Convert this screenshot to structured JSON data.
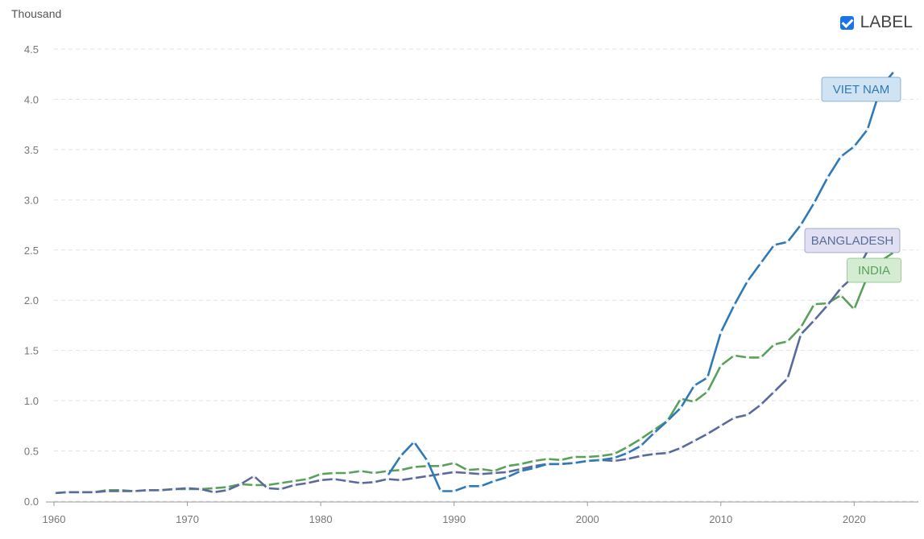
{
  "label_toggle": {
    "text": "LABEL",
    "checked": true
  },
  "chart_data": {
    "type": "line",
    "unit_label": "Thousand",
    "ylim": [
      0,
      4.5
    ],
    "y_ticks": [
      "0.0",
      "0.5",
      "1.0",
      "1.5",
      "2.0",
      "2.5",
      "3.0",
      "3.5",
      "4.0",
      "4.5"
    ],
    "x_ticks": [
      "1960",
      "1970",
      "1980",
      "1990",
      "2000",
      "2010",
      "2020"
    ],
    "xlim": [
      1960,
      2024
    ],
    "grid": true,
    "series": [
      {
        "name": "VIET NAM",
        "color": "#2f7ab6",
        "label_bg": "#cfe3f3",
        "points": [
          [
            1985,
            0.25
          ],
          [
            1986,
            0.45
          ],
          [
            1987,
            0.59
          ],
          [
            1988,
            0.4
          ],
          [
            1989,
            0.1
          ],
          [
            1990,
            0.1
          ],
          [
            1991,
            0.15
          ],
          [
            1992,
            0.15
          ],
          [
            1993,
            0.2
          ],
          [
            1994,
            0.24
          ],
          [
            1995,
            0.3
          ],
          [
            1996,
            0.33
          ],
          [
            1997,
            0.37
          ],
          [
            1998,
            0.37
          ],
          [
            1999,
            0.38
          ],
          [
            2000,
            0.4
          ],
          [
            2001,
            0.41
          ],
          [
            2002,
            0.43
          ],
          [
            2003,
            0.48
          ],
          [
            2004,
            0.55
          ],
          [
            2005,
            0.68
          ],
          [
            2006,
            0.8
          ],
          [
            2007,
            0.93
          ],
          [
            2008,
            1.15
          ],
          [
            2009,
            1.23
          ],
          [
            2010,
            1.68
          ],
          [
            2011,
            1.95
          ],
          [
            2012,
            2.19
          ],
          [
            2013,
            2.37
          ],
          [
            2014,
            2.55
          ],
          [
            2015,
            2.58
          ],
          [
            2016,
            2.75
          ],
          [
            2017,
            2.97
          ],
          [
            2018,
            3.22
          ],
          [
            2019,
            3.43
          ],
          [
            2020,
            3.53
          ],
          [
            2021,
            3.7
          ],
          [
            2022,
            4.12
          ],
          [
            2023,
            4.28
          ]
        ]
      },
      {
        "name": "BANGLADESH",
        "color": "#5a6a99",
        "label_bg": "#e0e0f2",
        "points": [
          [
            1960,
            0.08
          ],
          [
            1961,
            0.09
          ],
          [
            1962,
            0.09
          ],
          [
            1963,
            0.09
          ],
          [
            1964,
            0.1
          ],
          [
            1965,
            0.1
          ],
          [
            1966,
            0.1
          ],
          [
            1967,
            0.11
          ],
          [
            1968,
            0.11
          ],
          [
            1969,
            0.12
          ],
          [
            1970,
            0.13
          ],
          [
            1971,
            0.12
          ],
          [
            1972,
            0.09
          ],
          [
            1973,
            0.11
          ],
          [
            1974,
            0.17
          ],
          [
            1975,
            0.25
          ],
          [
            1976,
            0.13
          ],
          [
            1977,
            0.12
          ],
          [
            1978,
            0.16
          ],
          [
            1979,
            0.18
          ],
          [
            1980,
            0.21
          ],
          [
            1981,
            0.22
          ],
          [
            1982,
            0.2
          ],
          [
            1983,
            0.18
          ],
          [
            1984,
            0.19
          ],
          [
            1985,
            0.22
          ],
          [
            1986,
            0.21
          ],
          [
            1987,
            0.23
          ],
          [
            1988,
            0.25
          ],
          [
            1989,
            0.27
          ],
          [
            1990,
            0.29
          ],
          [
            1991,
            0.28
          ],
          [
            1992,
            0.27
          ],
          [
            1993,
            0.28
          ],
          [
            1994,
            0.29
          ],
          [
            1995,
            0.32
          ],
          [
            1996,
            0.35
          ],
          [
            1997,
            0.37
          ],
          [
            1998,
            0.37
          ],
          [
            1999,
            0.38
          ],
          [
            2000,
            0.4
          ],
          [
            2001,
            0.41
          ],
          [
            2002,
            0.4
          ],
          [
            2003,
            0.42
          ],
          [
            2004,
            0.45
          ],
          [
            2005,
            0.47
          ],
          [
            2006,
            0.48
          ],
          [
            2007,
            0.53
          ],
          [
            2008,
            0.6
          ],
          [
            2009,
            0.67
          ],
          [
            2010,
            0.75
          ],
          [
            2011,
            0.83
          ],
          [
            2012,
            0.86
          ],
          [
            2013,
            0.96
          ],
          [
            2014,
            1.09
          ],
          [
            2015,
            1.22
          ],
          [
            2016,
            1.66
          ],
          [
            2017,
            1.8
          ],
          [
            2018,
            1.95
          ],
          [
            2019,
            2.12
          ],
          [
            2020,
            2.24
          ],
          [
            2021,
            2.49
          ],
          [
            2022,
            2.71
          ],
          [
            2023,
            2.53
          ]
        ]
      },
      {
        "name": "INDIA",
        "color": "#5aa05a",
        "label_bg": "#d3ecd2",
        "points": [
          [
            1960,
            0.08
          ],
          [
            1961,
            0.09
          ],
          [
            1962,
            0.09
          ],
          [
            1963,
            0.09
          ],
          [
            1964,
            0.11
          ],
          [
            1965,
            0.11
          ],
          [
            1966,
            0.1
          ],
          [
            1967,
            0.11
          ],
          [
            1968,
            0.11
          ],
          [
            1969,
            0.12
          ],
          [
            1970,
            0.12
          ],
          [
            1971,
            0.12
          ],
          [
            1972,
            0.13
          ],
          [
            1973,
            0.14
          ],
          [
            1974,
            0.17
          ],
          [
            1975,
            0.16
          ],
          [
            1976,
            0.16
          ],
          [
            1977,
            0.18
          ],
          [
            1978,
            0.2
          ],
          [
            1979,
            0.22
          ],
          [
            1980,
            0.27
          ],
          [
            1981,
            0.28
          ],
          [
            1982,
            0.28
          ],
          [
            1983,
            0.3
          ],
          [
            1984,
            0.28
          ],
          [
            1985,
            0.3
          ],
          [
            1986,
            0.31
          ],
          [
            1987,
            0.34
          ],
          [
            1988,
            0.35
          ],
          [
            1989,
            0.35
          ],
          [
            1990,
            0.38
          ],
          [
            1991,
            0.31
          ],
          [
            1992,
            0.32
          ],
          [
            1993,
            0.3
          ],
          [
            1994,
            0.35
          ],
          [
            1995,
            0.37
          ],
          [
            1996,
            0.4
          ],
          [
            1997,
            0.42
          ],
          [
            1998,
            0.41
          ],
          [
            1999,
            0.44
          ],
          [
            2000,
            0.44
          ],
          [
            2001,
            0.45
          ],
          [
            2002,
            0.47
          ],
          [
            2003,
            0.54
          ],
          [
            2004,
            0.62
          ],
          [
            2005,
            0.71
          ],
          [
            2006,
            0.8
          ],
          [
            2007,
            1.02
          ],
          [
            2008,
            0.99
          ],
          [
            2009,
            1.09
          ],
          [
            2010,
            1.35
          ],
          [
            2011,
            1.45
          ],
          [
            2012,
            1.43
          ],
          [
            2013,
            1.43
          ],
          [
            2014,
            1.56
          ],
          [
            2015,
            1.59
          ],
          [
            2016,
            1.73
          ],
          [
            2017,
            1.96
          ],
          [
            2018,
            1.97
          ],
          [
            2019,
            2.05
          ],
          [
            2020,
            1.91
          ],
          [
            2021,
            2.24
          ],
          [
            2022,
            2.39
          ],
          [
            2023,
            2.48
          ]
        ]
      }
    ]
  }
}
